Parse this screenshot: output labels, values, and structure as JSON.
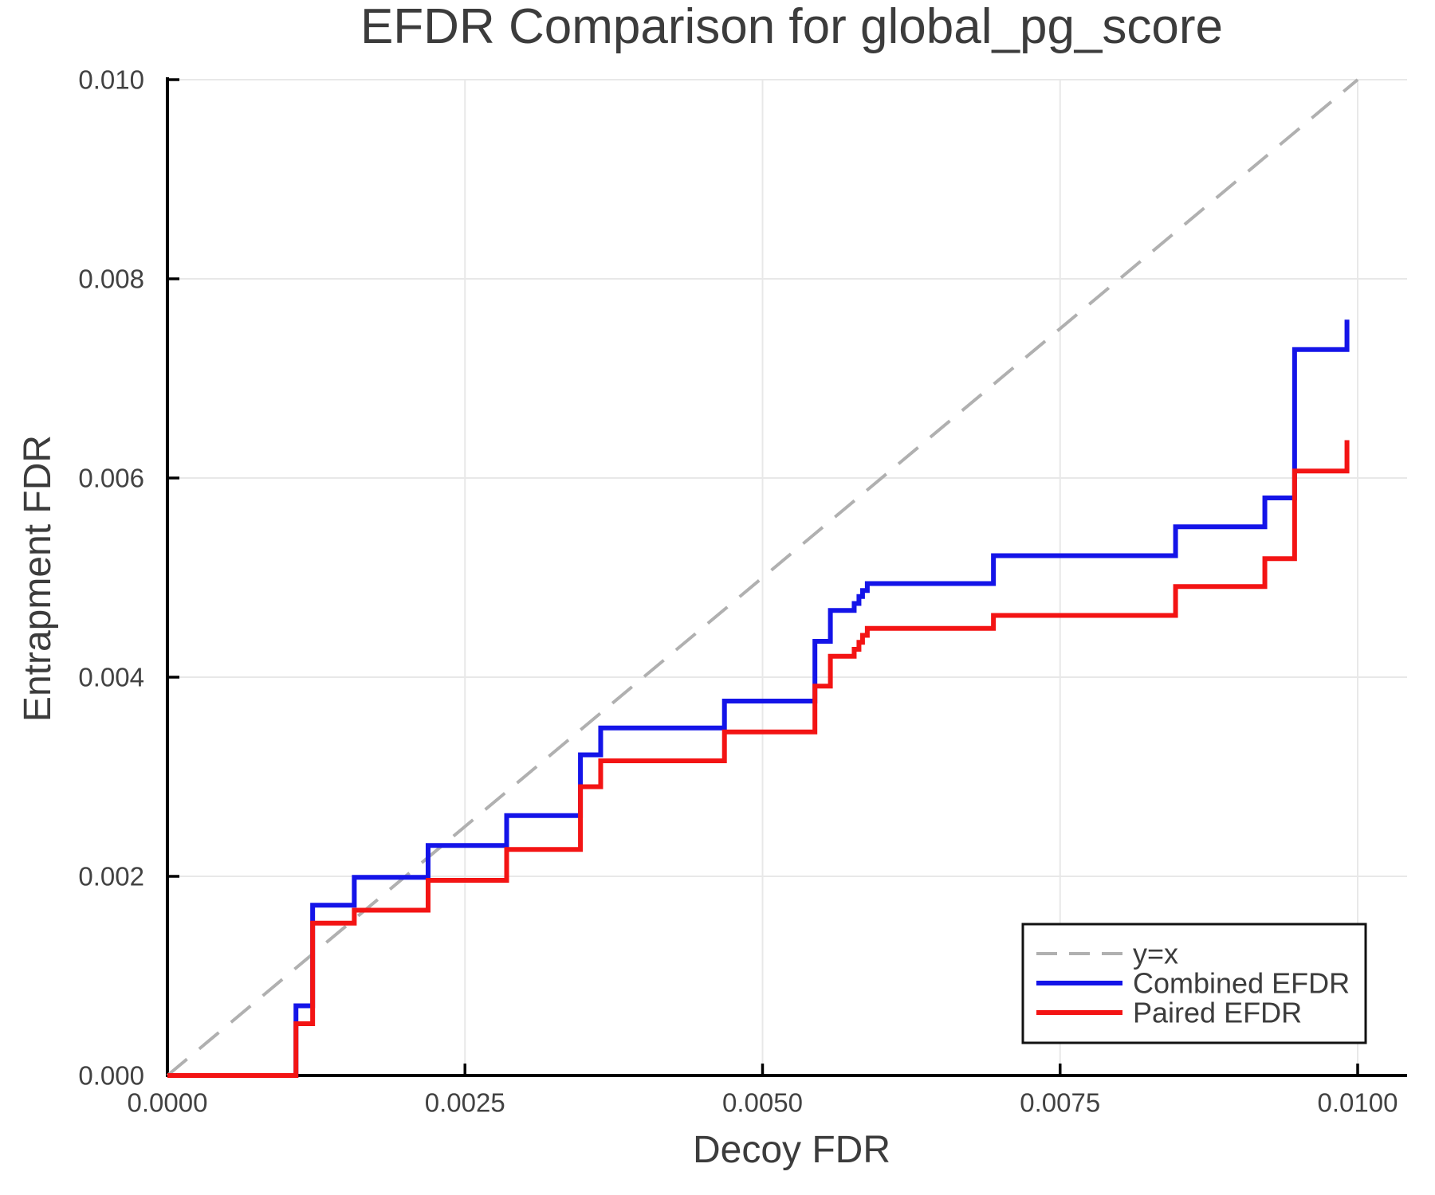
{
  "chart_data": {
    "type": "line",
    "title": "EFDR Comparison for global_pg_score",
    "xlabel": "Decoy FDR",
    "ylabel": "Entrapment FDR",
    "xlim": [
      0,
      0.0104
    ],
    "ylim": [
      0,
      0.01
    ],
    "grid": true,
    "legend_position": "bottom-right",
    "xticks": {
      "values": [
        0,
        0.0025,
        0.005,
        0.0075,
        0.01
      ],
      "labels": [
        "0.0000",
        "0.0025",
        "0.0050",
        "0.0075",
        "0.0100"
      ]
    },
    "yticks": {
      "values": [
        0,
        0.002,
        0.004,
        0.006,
        0.008,
        0.01
      ],
      "labels": [
        "0.000",
        "0.002",
        "0.004",
        "0.006",
        "0.008",
        "0.010"
      ]
    },
    "series": [
      {
        "name": "y=x",
        "type": "line",
        "style": "dashed",
        "color": "#b0b0b0",
        "points": [
          [
            0,
            0
          ],
          [
            0.01,
            0.01
          ]
        ]
      },
      {
        "name": "Combined EFDR",
        "type": "step",
        "style": "solid",
        "color": "#1414e8",
        "points": [
          [
            0,
            0
          ],
          [
            0.00108,
            0.0007
          ],
          [
            0.00122,
            0.00171
          ],
          [
            0.00157,
            0.00199
          ],
          [
            0.00219,
            0.00231
          ],
          [
            0.00285,
            0.00261
          ],
          [
            0.00347,
            0.00322
          ],
          [
            0.00364,
            0.00349
          ],
          [
            0.00468,
            0.00376
          ],
          [
            0.00544,
            0.00436
          ],
          [
            0.00557,
            0.00467
          ],
          [
            0.00577,
            0.00474
          ],
          [
            0.00581,
            0.00481
          ],
          [
            0.00584,
            0.00487
          ],
          [
            0.00588,
            0.00494
          ],
          [
            0.00694,
            0.00522
          ],
          [
            0.00847,
            0.00551
          ],
          [
            0.00922,
            0.0058
          ],
          [
            0.00947,
            0.00729
          ],
          [
            0.00991,
            0.00759
          ]
        ]
      },
      {
        "name": "Paired EFDR",
        "type": "step",
        "style": "solid",
        "color": "#f31414",
        "points": [
          [
            0,
            0
          ],
          [
            0.00108,
            0.00052
          ],
          [
            0.00122,
            0.00153
          ],
          [
            0.00157,
            0.00166
          ],
          [
            0.00219,
            0.00196
          ],
          [
            0.00285,
            0.00227
          ],
          [
            0.00347,
            0.0029
          ],
          [
            0.00364,
            0.00316
          ],
          [
            0.00468,
            0.00345
          ],
          [
            0.00544,
            0.00391
          ],
          [
            0.00557,
            0.00421
          ],
          [
            0.00577,
            0.00428
          ],
          [
            0.00581,
            0.00435
          ],
          [
            0.00584,
            0.00442
          ],
          [
            0.00588,
            0.00449
          ],
          [
            0.00694,
            0.00462
          ],
          [
            0.00847,
            0.00491
          ],
          [
            0.00922,
            0.00519
          ],
          [
            0.00947,
            0.00607
          ],
          [
            0.00991,
            0.00638
          ]
        ]
      }
    ]
  }
}
